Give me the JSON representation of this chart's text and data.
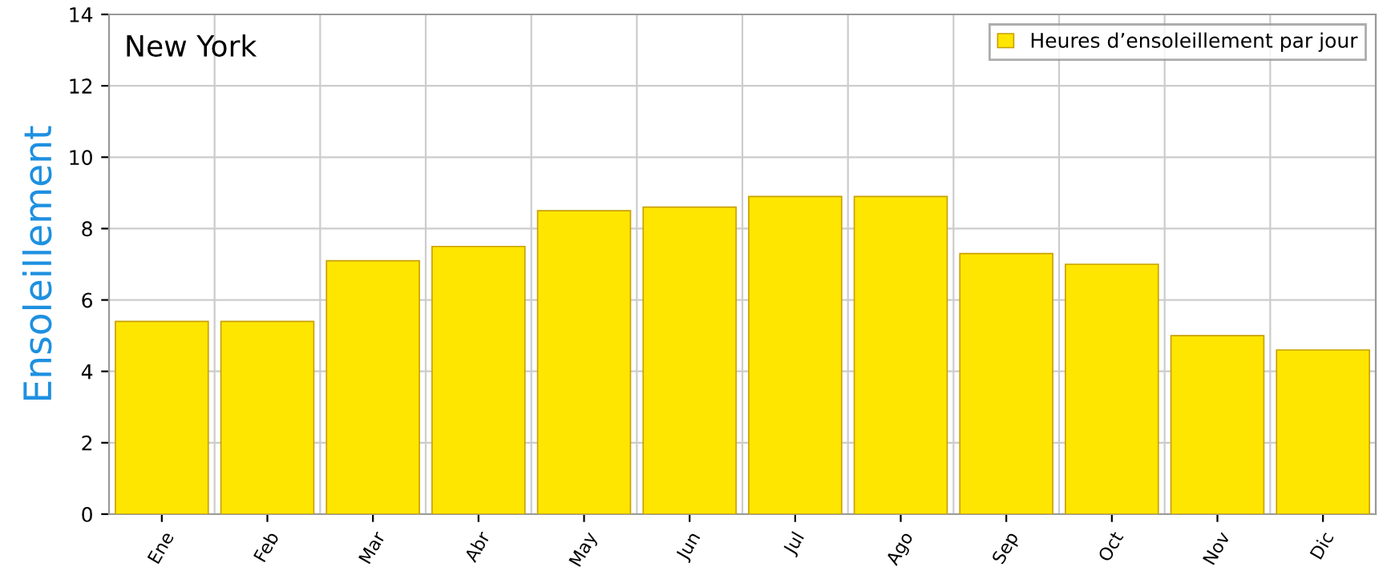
{
  "chart_data": {
    "type": "bar",
    "title": "New York",
    "ylabel": "Ensoleillement",
    "categories": [
      "Ene",
      "Feb",
      "Mar",
      "Abr",
      "May",
      "Jun",
      "Jul",
      "Ago",
      "Sep",
      "Oct",
      "Nov",
      "Dic"
    ],
    "series": [
      {
        "name": "Heures d’ensoleillement par jour",
        "color": "#ffe600",
        "values": [
          5.4,
          5.4,
          7.1,
          7.5,
          8.5,
          8.6,
          8.9,
          8.9,
          7.3,
          7.0,
          5.0,
          4.6
        ]
      }
    ],
    "ylim": [
      0,
      14
    ],
    "yticks": [
      0,
      2,
      4,
      6,
      8,
      10,
      12,
      14
    ],
    "grid": true,
    "legend": "top right"
  }
}
